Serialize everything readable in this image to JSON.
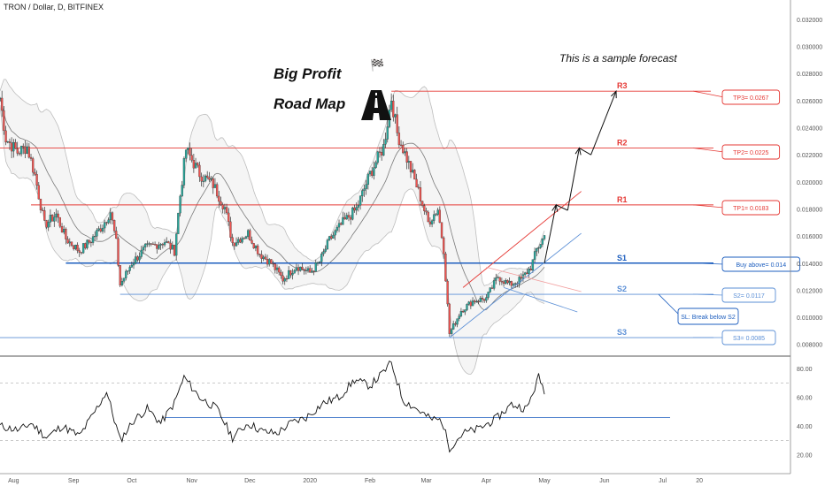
{
  "header": {
    "symbol": "TRON / Dollar, D, BITFINEX"
  },
  "title": {
    "line1": "Big Profit",
    "line2": "Road Map",
    "flag_icon": "checkered-flag-icon",
    "road_icon": "road-icon"
  },
  "note": "This is a sample forecast",
  "colors": {
    "up": "#26a69a",
    "down": "#ef5350",
    "resistance": "#e53935",
    "support": "#1e5fbf",
    "support_light": "#5b8fd6",
    "band": "#bdbdbd",
    "band_fill": "#eeeeee",
    "ma": "#7a7a7a",
    "oscillator": "#111111",
    "axis_text": "#555555"
  },
  "chart_data": [
    {
      "type": "candlestick",
      "title": "TRON / Dollar, D, BITFINEX",
      "x_ticks": [
        "Aug",
        "Sep",
        "Oct",
        "Nov",
        "Dec",
        "2020",
        "Feb",
        "Mar",
        "Apr",
        "May",
        "Jun",
        "Jul",
        "20"
      ],
      "y_ticks": [
        "0.032000",
        "0.030000",
        "0.028000",
        "0.026000",
        "0.024000",
        "0.022000",
        "0.020000",
        "0.018000",
        "0.016000",
        "0.014000",
        "0.012000",
        "0.010000",
        "0.008000"
      ],
      "ylim": [
        0.0072,
        0.0333
      ],
      "grid": false,
      "price_path": [
        [
          "2019-07-25",
          0.0262
        ],
        [
          "2019-07-28",
          0.0232
        ],
        [
          "2019-08-03",
          0.0222
        ],
        [
          "2019-08-08",
          0.0226
        ],
        [
          "2019-08-12",
          0.0205
        ],
        [
          "2019-08-17",
          0.0168
        ],
        [
          "2019-08-23",
          0.0176
        ],
        [
          "2019-08-28",
          0.0158
        ],
        [
          "2019-09-04",
          0.0149
        ],
        [
          "2019-09-10",
          0.0157
        ],
        [
          "2019-09-16",
          0.0168
        ],
        [
          "2019-09-20",
          0.0178
        ],
        [
          "2019-09-23",
          0.0155
        ],
        [
          "2019-09-25",
          0.0124
        ],
        [
          "2019-10-01",
          0.014
        ],
        [
          "2019-10-08",
          0.0151
        ],
        [
          "2019-10-18",
          0.0156
        ],
        [
          "2019-10-23",
          0.0149
        ],
        [
          "2019-10-26",
          0.019
        ],
        [
          "2019-10-29",
          0.0224
        ],
        [
          "2019-11-05",
          0.0206
        ],
        [
          "2019-11-12",
          0.0198
        ],
        [
          "2019-11-18",
          0.0181
        ],
        [
          "2019-11-22",
          0.0155
        ],
        [
          "2019-11-30",
          0.0162
        ],
        [
          "2019-12-06",
          0.0147
        ],
        [
          "2019-12-12",
          0.014
        ],
        [
          "2019-12-18",
          0.0128
        ],
        [
          "2019-12-25",
          0.0138
        ],
        [
          "2020-01-01",
          0.0133
        ],
        [
          "2020-01-06",
          0.0141
        ],
        [
          "2020-01-11",
          0.0157
        ],
        [
          "2020-01-18",
          0.017
        ],
        [
          "2020-01-25",
          0.018
        ],
        [
          "2020-02-01",
          0.0206
        ],
        [
          "2020-02-08",
          0.0226
        ],
        [
          "2020-02-12",
          0.0262
        ],
        [
          "2020-02-15",
          0.0236
        ],
        [
          "2020-02-20",
          0.0217
        ],
        [
          "2020-02-26",
          0.0193
        ],
        [
          "2020-03-02",
          0.017
        ],
        [
          "2020-03-07",
          0.018
        ],
        [
          "2020-03-10",
          0.015
        ],
        [
          "2020-03-13",
          0.0088
        ],
        [
          "2020-03-19",
          0.0105
        ],
        [
          "2020-03-25",
          0.0112
        ],
        [
          "2020-04-01",
          0.0114
        ],
        [
          "2020-04-07",
          0.013
        ],
        [
          "2020-04-13",
          0.0124
        ],
        [
          "2020-04-19",
          0.0128
        ],
        [
          "2020-04-24",
          0.0137
        ],
        [
          "2020-04-27",
          0.015
        ],
        [
          "2020-05-01",
          0.016
        ]
      ],
      "levels": [
        {
          "name": "R3",
          "value": 0.0267,
          "type": "resistance",
          "callout": "TP3= 0.0267"
        },
        {
          "name": "R2",
          "value": 0.0225,
          "type": "resistance",
          "callout": "TP2= 0.0225"
        },
        {
          "name": "R1",
          "value": 0.0183,
          "type": "resistance",
          "callout": "TP1= 0.0183"
        },
        {
          "name": "S1",
          "value": 0.014,
          "type": "support",
          "callout": "Buy above= 0.014"
        },
        {
          "name": "S2",
          "value": 0.0117,
          "type": "support",
          "callout": "S2= 0.0117"
        },
        {
          "name": "S3",
          "value": 0.0085,
          "type": "support",
          "callout": "S3= 0.0085"
        }
      ],
      "extra_callouts": [
        {
          "text": "SL: Break below S2",
          "level": "S2"
        }
      ],
      "channel": {
        "start": [
          "2020-03-13",
          0.0085
        ],
        "lower_end": [
          "2020-05-20",
          0.0162
        ],
        "upper_start": [
          "2020-03-20",
          0.0122
        ],
        "upper_end": [
          "2020-05-20",
          0.0193
        ]
      },
      "forecast_path": [
        [
          "2020-05-01",
          0.014
        ],
        [
          "2020-05-07",
          0.0183
        ],
        [
          "2020-05-13",
          0.0179
        ],
        [
          "2020-05-19",
          0.0225
        ],
        [
          "2020-05-25",
          0.022
        ],
        [
          "2020-06-07",
          0.0267
        ]
      ]
    },
    {
      "type": "line",
      "name": "oscillator",
      "y_ticks": [
        "80.00",
        "60.00",
        "40.00",
        "20.00"
      ],
      "ylim": [
        10,
        88
      ],
      "reference_levels": [
        70,
        30
      ],
      "signal_level": 46,
      "path": [
        [
          "2019-07-25",
          40
        ],
        [
          "2019-08-04",
          37
        ],
        [
          "2019-08-10",
          42
        ],
        [
          "2019-08-18",
          32
        ],
        [
          "2019-08-26",
          40
        ],
        [
          "2019-09-04",
          33
        ],
        [
          "2019-09-12",
          50
        ],
        [
          "2019-09-18",
          64
        ],
        [
          "2019-09-25",
          30
        ],
        [
          "2019-10-02",
          44
        ],
        [
          "2019-10-09",
          52
        ],
        [
          "2019-10-16",
          42
        ],
        [
          "2019-10-23",
          56
        ],
        [
          "2019-10-28",
          74
        ],
        [
          "2019-11-05",
          60
        ],
        [
          "2019-11-14",
          52
        ],
        [
          "2019-11-22",
          32
        ],
        [
          "2019-11-30",
          42
        ],
        [
          "2019-12-08",
          36
        ],
        [
          "2019-12-15",
          35
        ],
        [
          "2019-12-22",
          42
        ],
        [
          "2019-12-30",
          46
        ],
        [
          "2020-01-08",
          56
        ],
        [
          "2020-01-16",
          60
        ],
        [
          "2020-01-24",
          72
        ],
        [
          "2020-02-01",
          68
        ],
        [
          "2020-02-07",
          76
        ],
        [
          "2020-02-12",
          84
        ],
        [
          "2020-02-18",
          58
        ],
        [
          "2020-02-25",
          52
        ],
        [
          "2020-03-03",
          45
        ],
        [
          "2020-03-09",
          44
        ],
        [
          "2020-03-13",
          25
        ],
        [
          "2020-03-20",
          35
        ],
        [
          "2020-03-28",
          38
        ],
        [
          "2020-04-06",
          45
        ],
        [
          "2020-04-14",
          55
        ],
        [
          "2020-04-22",
          52
        ],
        [
          "2020-04-28",
          74
        ],
        [
          "2020-05-01",
          65
        ]
      ]
    }
  ]
}
